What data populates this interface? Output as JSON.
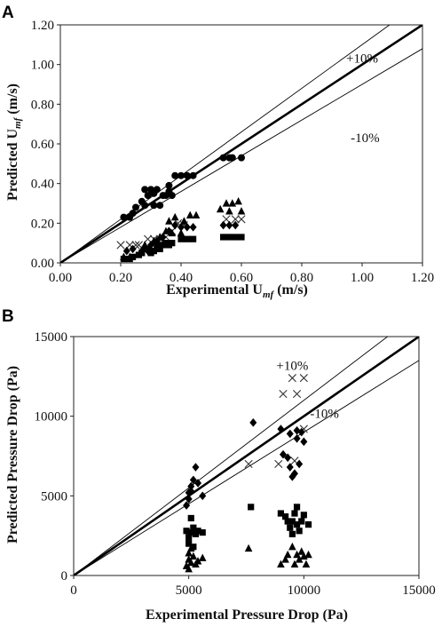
{
  "chart_data": [
    {
      "type": "scatter",
      "panel_label": "A",
      "xlabel": "Experimental U",
      "xlabel_sub": "mf",
      "xlabel_unit": " (m/s)",
      "ylabel": "Predicted U",
      "ylabel_sub": "mf",
      "ylabel_unit": " (m/s)",
      "xlim": [
        0,
        1.2
      ],
      "ylim": [
        0,
        1.2
      ],
      "xticks": [
        "0.00",
        "0.20",
        "0.40",
        "0.60",
        "0.80",
        "1.00",
        "1.20"
      ],
      "yticks": [
        "0.00",
        "0.20",
        "0.40",
        "0.60",
        "0.80",
        "1.00",
        "1.20"
      ],
      "grid": false,
      "lines": [
        {
          "kind": "parity",
          "slope": 1.0
        },
        {
          "kind": "plus10",
          "slope": 1.1
        },
        {
          "kind": "minus10",
          "slope": 0.9
        }
      ],
      "annotations": [
        {
          "text": "+10%",
          "x": 1.0,
          "y": 1.01
        },
        {
          "text": "-10%",
          "x": 1.01,
          "y": 0.61
        }
      ],
      "series": [
        {
          "marker": "circle",
          "points": [
            [
              0.21,
              0.23
            ],
            [
              0.23,
              0.23
            ],
            [
              0.24,
              0.25
            ],
            [
              0.25,
              0.28
            ],
            [
              0.27,
              0.31
            ],
            [
              0.28,
              0.29
            ],
            [
              0.29,
              0.34
            ],
            [
              0.3,
              0.37
            ],
            [
              0.31,
              0.35
            ],
            [
              0.28,
              0.37
            ],
            [
              0.31,
              0.29
            ],
            [
              0.33,
              0.29
            ],
            [
              0.32,
              0.37
            ],
            [
              0.34,
              0.34
            ],
            [
              0.35,
              0.34
            ],
            [
              0.36,
              0.36
            ],
            [
              0.36,
              0.39
            ],
            [
              0.37,
              0.34
            ],
            [
              0.38,
              0.44
            ],
            [
              0.4,
              0.44
            ],
            [
              0.42,
              0.44
            ],
            [
              0.44,
              0.44
            ],
            [
              0.54,
              0.53
            ],
            [
              0.56,
              0.53
            ],
            [
              0.57,
              0.53
            ],
            [
              0.6,
              0.53
            ]
          ]
        },
        {
          "marker": "cross",
          "points": [
            [
              0.2,
              0.09
            ],
            [
              0.23,
              0.09
            ],
            [
              0.25,
              0.09
            ],
            [
              0.26,
              0.09
            ],
            [
              0.29,
              0.12
            ],
            [
              0.31,
              0.12
            ],
            [
              0.33,
              0.12
            ],
            [
              0.35,
              0.13
            ],
            [
              0.37,
              0.16
            ],
            [
              0.39,
              0.2
            ],
            [
              0.41,
              0.19
            ],
            [
              0.55,
              0.22
            ],
            [
              0.58,
              0.22
            ],
            [
              0.6,
              0.22
            ]
          ]
        },
        {
          "marker": "diamond",
          "points": [
            [
              0.22,
              0.06
            ],
            [
              0.24,
              0.07
            ],
            [
              0.27,
              0.06
            ],
            [
              0.29,
              0.06
            ],
            [
              0.3,
              0.09
            ],
            [
              0.32,
              0.11
            ],
            [
              0.34,
              0.13
            ],
            [
              0.36,
              0.16
            ],
            [
              0.38,
              0.19
            ],
            [
              0.4,
              0.18
            ],
            [
              0.42,
              0.18
            ],
            [
              0.44,
              0.18
            ],
            [
              0.54,
              0.19
            ],
            [
              0.56,
              0.19
            ],
            [
              0.58,
              0.19
            ]
          ]
        },
        {
          "marker": "triangle",
          "points": [
            [
              0.21,
              0.03
            ],
            [
              0.23,
              0.03
            ],
            [
              0.28,
              0.09
            ],
            [
              0.3,
              0.06
            ],
            [
              0.31,
              0.11
            ],
            [
              0.33,
              0.13
            ],
            [
              0.35,
              0.16
            ],
            [
              0.36,
              0.21
            ],
            [
              0.37,
              0.15
            ],
            [
              0.38,
              0.23
            ],
            [
              0.41,
              0.21
            ],
            [
              0.43,
              0.24
            ],
            [
              0.45,
              0.24
            ],
            [
              0.4,
              0.15
            ],
            [
              0.53,
              0.27
            ],
            [
              0.55,
              0.3
            ],
            [
              0.57,
              0.3
            ],
            [
              0.59,
              0.31
            ],
            [
              0.6,
              0.26
            ],
            [
              0.56,
              0.26
            ]
          ]
        },
        {
          "marker": "square",
          "points": [
            [
              0.21,
              0.02
            ],
            [
              0.23,
              0.02
            ],
            [
              0.24,
              0.03
            ],
            [
              0.26,
              0.04
            ],
            [
              0.27,
              0.05
            ],
            [
              0.28,
              0.07
            ],
            [
              0.29,
              0.07
            ],
            [
              0.3,
              0.05
            ],
            [
              0.31,
              0.06
            ],
            [
              0.32,
              0.09
            ],
            [
              0.33,
              0.07
            ],
            [
              0.34,
              0.09
            ],
            [
              0.35,
              0.1
            ],
            [
              0.36,
              0.09
            ],
            [
              0.37,
              0.1
            ],
            [
              0.4,
              0.12
            ],
            [
              0.42,
              0.12
            ],
            [
              0.44,
              0.12
            ],
            [
              0.54,
              0.13
            ],
            [
              0.56,
              0.13
            ],
            [
              0.58,
              0.13
            ],
            [
              0.6,
              0.13
            ]
          ]
        }
      ]
    },
    {
      "type": "scatter",
      "panel_label": "B",
      "xlabel": "Experimental Pressure Drop (Pa)",
      "ylabel": "Predicted Pressure Drop (Pa)",
      "xlim": [
        0,
        15000
      ],
      "ylim": [
        0,
        15000
      ],
      "xticks": [
        "0",
        "5000",
        "10000",
        "15000"
      ],
      "yticks": [
        "0",
        "5000",
        "10000",
        "15000"
      ],
      "grid": false,
      "lines": [
        {
          "kind": "parity",
          "slope": 1.0
        },
        {
          "kind": "plus10",
          "slope": 1.1
        },
        {
          "kind": "minus10",
          "slope": 0.9
        }
      ],
      "annotations": [
        {
          "text": "+10%",
          "x": 9500,
          "y": 12900
        },
        {
          "text": "-10%",
          "x": 10900,
          "y": 9900
        }
      ],
      "series": [
        {
          "marker": "cross",
          "points": [
            [
              7600,
              7000
            ],
            [
              8900,
              7000
            ],
            [
              9100,
              11400
            ],
            [
              9500,
              12400
            ],
            [
              9700,
              11400
            ],
            [
              10000,
              12400
            ],
            [
              9600,
              7200
            ],
            [
              10000,
              9200
            ]
          ]
        },
        {
          "marker": "diamond",
          "points": [
            [
              4900,
              4400
            ],
            [
              5000,
              4800
            ],
            [
              5000,
              5200
            ],
            [
              5100,
              5600
            ],
            [
              5200,
              6000
            ],
            [
              5300,
              6800
            ],
            [
              5400,
              5800
            ],
            [
              5600,
              5000
            ],
            [
              5100,
              5300
            ],
            [
              7800,
              9600
            ],
            [
              9000,
              9200
            ],
            [
              9100,
              7600
            ],
            [
              9300,
              7400
            ],
            [
              9400,
              6800
            ],
            [
              9500,
              6200
            ],
            [
              9600,
              6400
            ],
            [
              9700,
              8600
            ],
            [
              9800,
              7000
            ],
            [
              9900,
              9000
            ],
            [
              10000,
              8400
            ],
            [
              9700,
              9100
            ],
            [
              9400,
              8900
            ]
          ]
        },
        {
          "marker": "square",
          "points": [
            [
              4900,
              2800
            ],
            [
              5000,
              2400
            ],
            [
              5000,
              2000
            ],
            [
              5100,
              2700
            ],
            [
              5100,
              3600
            ],
            [
              5200,
              3000
            ],
            [
              5200,
              1800
            ],
            [
              5300,
              2600
            ],
            [
              5400,
              2800
            ],
            [
              5600,
              2700
            ],
            [
              7700,
              4300
            ],
            [
              9000,
              3900
            ],
            [
              9200,
              3700
            ],
            [
              9300,
              3400
            ],
            [
              9400,
              3000
            ],
            [
              9500,
              3400
            ],
            [
              9600,
              3900
            ],
            [
              9700,
              4300
            ],
            [
              9700,
              3200
            ],
            [
              9800,
              2800
            ],
            [
              9900,
              3400
            ],
            [
              10000,
              3800
            ],
            [
              10200,
              3200
            ],
            [
              9500,
              2600
            ]
          ]
        },
        {
          "marker": "triangle",
          "points": [
            [
              4900,
              600
            ],
            [
              5000,
              1000
            ],
            [
              5000,
              1400
            ],
            [
              5100,
              800
            ],
            [
              5200,
              1200
            ],
            [
              5300,
              700
            ],
            [
              5400,
              900
            ],
            [
              5100,
              1700
            ],
            [
              5600,
              1100
            ],
            [
              5000,
              400
            ],
            [
              7600,
              1700
            ],
            [
              9000,
              700
            ],
            [
              9200,
              1000
            ],
            [
              9300,
              1300
            ],
            [
              9500,
              1800
            ],
            [
              9600,
              700
            ],
            [
              9700,
              1300
            ],
            [
              9800,
              1000
            ],
            [
              9900,
              1500
            ],
            [
              10000,
              1200
            ],
            [
              10100,
              700
            ],
            [
              10200,
              1300
            ]
          ]
        }
      ]
    }
  ]
}
